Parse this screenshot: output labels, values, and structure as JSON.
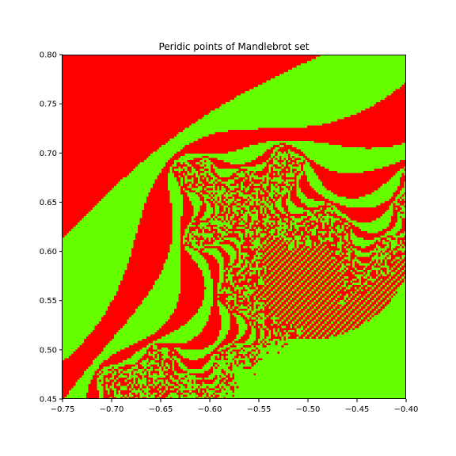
{
  "chart_data": {
    "type": "heatmap",
    "title": "Peridic points of Mandlebrot set",
    "xlabel": "",
    "ylabel": "",
    "xlim": [
      -0.75,
      -0.4
    ],
    "ylim": [
      0.45,
      0.8
    ],
    "x_ticks": [
      -0.75,
      -0.7,
      -0.65,
      -0.6,
      -0.55,
      -0.5,
      -0.45,
      -0.4
    ],
    "x_tick_labels": [
      "−0.75",
      "−0.70",
      "−0.65",
      "−0.60",
      "−0.55",
      "−0.50",
      "−0.45",
      "−0.40"
    ],
    "y_ticks": [
      0.45,
      0.5,
      0.55,
      0.6,
      0.65,
      0.7,
      0.75,
      0.8
    ],
    "y_tick_labels": [
      "0.45",
      "0.50",
      "0.55",
      "0.60",
      "0.65",
      "0.70",
      "0.75",
      "0.80"
    ],
    "colors": {
      "not_periodic": "#ff0000",
      "periodic": "#66ff00"
    },
    "max_iterations": 80,
    "rows": 160,
    "cols": 160
  }
}
